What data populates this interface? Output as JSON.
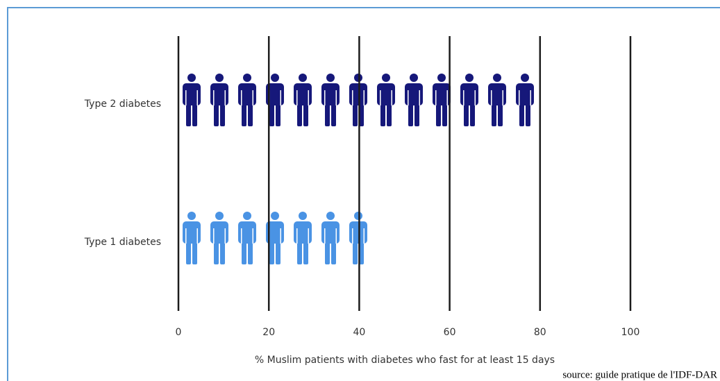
{
  "chart_data": {
    "type": "pictogram",
    "categories": [
      "Type 2 diabetes",
      "Type 1 diabetes"
    ],
    "values": [
      79,
      43
    ],
    "colors": [
      "#16187a",
      "#4a93e4"
    ],
    "xlim": [
      0,
      100
    ],
    "xticks": [
      0,
      20,
      40,
      60,
      80,
      100
    ],
    "xlabel": "% Muslim patients with diabetes who fast for at least 15 days",
    "source": "source: guide pratique de l'IDF-DAR",
    "grid": true
  }
}
